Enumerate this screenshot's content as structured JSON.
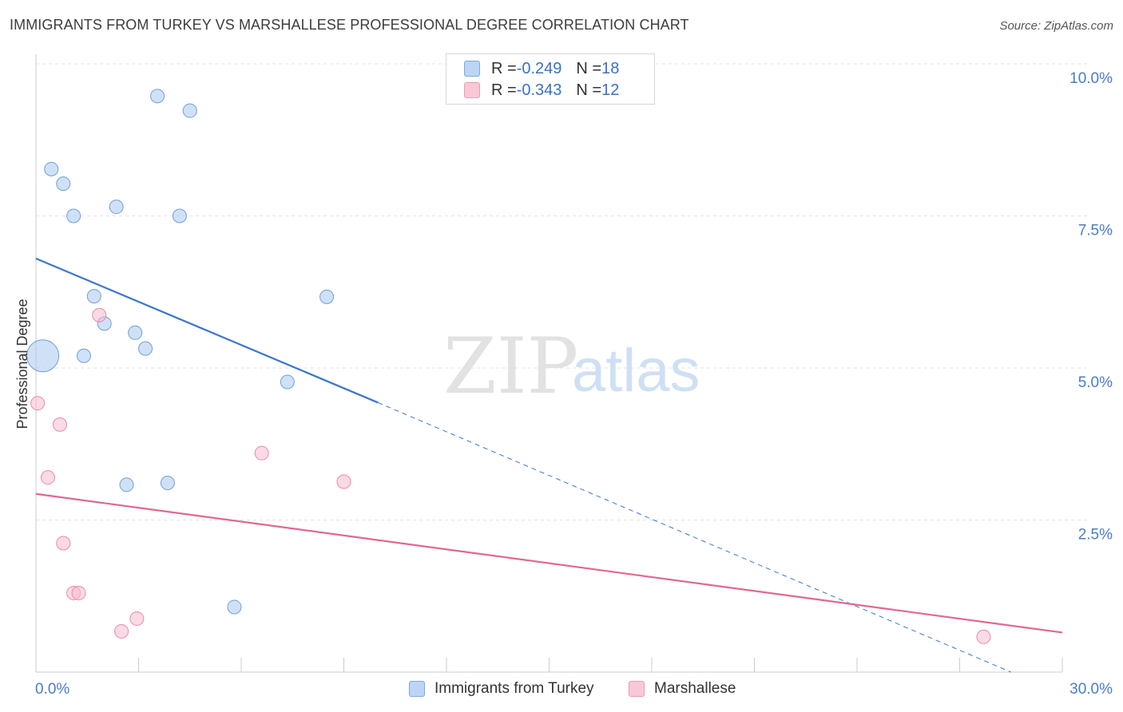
{
  "header": {
    "title": "IMMIGRANTS FROM TURKEY VS MARSHALLESE PROFESSIONAL DEGREE CORRELATION CHART",
    "source": "Source: ZipAtlas.com"
  },
  "watermark": {
    "zip": "ZIP",
    "atlas": "atlas"
  },
  "legend": {
    "rows": [
      {
        "r_label": "R = ",
        "r_value": "-0.249",
        "n_label": "N = ",
        "n_value": "18"
      },
      {
        "r_label": "R = ",
        "r_value": "-0.343",
        "n_label": "N = ",
        "n_value": "12"
      }
    ]
  },
  "chart_data": {
    "type": "scatter",
    "title": "IMMIGRANTS FROM TURKEY VS MARSHALLESE PROFESSIONAL DEGREE CORRELATION CHART",
    "xlabel": "",
    "ylabel": "Professional Degree",
    "xlim": [
      0,
      30
    ],
    "ylim": [
      0,
      10.2
    ],
    "x_tick_labels": [
      "0.0%",
      "30.0%"
    ],
    "y_ticks": [
      2.5,
      5.0,
      7.5,
      10.0
    ],
    "y_tick_labels": [
      "2.5%",
      "5.0%",
      "7.5%",
      "10.0%"
    ],
    "grid": true,
    "legend_position": "bottom-center",
    "series": [
      {
        "name": "Immigrants from Turkey",
        "color": "#a9c8f0",
        "stroke": "#6f9fd8",
        "line_color": "#3a76cc",
        "points": [
          {
            "x": 0.2,
            "y": 5.2,
            "size": "large"
          },
          {
            "x": 0.45,
            "y": 8.27
          },
          {
            "x": 0.8,
            "y": 8.03
          },
          {
            "x": 1.1,
            "y": 7.5
          },
          {
            "x": 1.4,
            "y": 5.2
          },
          {
            "x": 1.7,
            "y": 6.18
          },
          {
            "x": 2.0,
            "y": 5.73
          },
          {
            "x": 2.35,
            "y": 7.65
          },
          {
            "x": 2.65,
            "y": 3.08
          },
          {
            "x": 2.9,
            "y": 5.58
          },
          {
            "x": 3.2,
            "y": 5.32
          },
          {
            "x": 3.55,
            "y": 9.47
          },
          {
            "x": 3.85,
            "y": 3.11
          },
          {
            "x": 4.2,
            "y": 7.5
          },
          {
            "x": 4.5,
            "y": 9.23
          },
          {
            "x": 5.8,
            "y": 1.07
          },
          {
            "x": 7.35,
            "y": 4.77
          },
          {
            "x": 8.5,
            "y": 6.17
          }
        ],
        "trend": {
          "x0": 0,
          "y0": 6.8,
          "x1": 10.0,
          "y1": 4.43,
          "dash_to_x": 28.5,
          "dash_to_y": 0
        }
      },
      {
        "name": "Marshallese",
        "color": "#f5bccd",
        "stroke": "#e98aa6",
        "line_color": "#e0688f",
        "points": [
          {
            "x": 0.05,
            "y": 4.42
          },
          {
            "x": 0.35,
            "y": 3.2
          },
          {
            "x": 0.7,
            "y": 4.07
          },
          {
            "x": 0.8,
            "y": 2.12
          },
          {
            "x": 1.1,
            "y": 1.3
          },
          {
            "x": 1.25,
            "y": 1.3
          },
          {
            "x": 1.85,
            "y": 5.87
          },
          {
            "x": 2.5,
            "y": 0.67
          },
          {
            "x": 2.95,
            "y": 0.88
          },
          {
            "x": 6.6,
            "y": 3.6
          },
          {
            "x": 9.0,
            "y": 3.13
          },
          {
            "x": 27.7,
            "y": 0.58
          }
        ],
        "trend": {
          "x0": 0,
          "y0": 2.93,
          "x1": 30,
          "y1": 0.65
        }
      }
    ]
  }
}
